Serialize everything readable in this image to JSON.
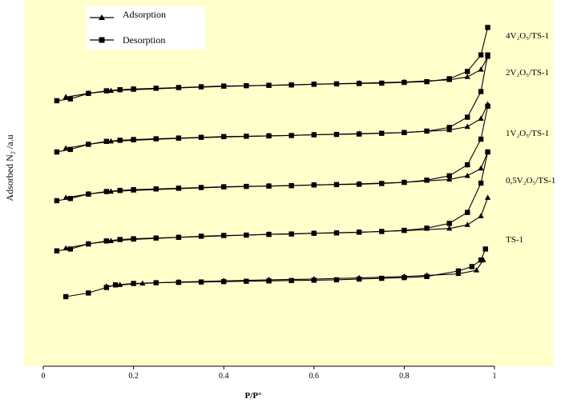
{
  "colors": {
    "plot_background": "#FFFFCC",
    "legend_background": "#FFFFFF",
    "line": "#000000"
  },
  "chart_data": {
    "type": "line",
    "title": "",
    "xlabel": "P/P°",
    "ylabel": "Adsorbed N₂ /a.u",
    "xlim": [
      0,
      1
    ],
    "ylim": [
      0,
      1
    ],
    "x_ticks": [
      "0",
      "0.2",
      "0.4",
      "0.6",
      "0.8",
      "1"
    ],
    "grid": false,
    "legend_position": "top-left",
    "legend": [
      {
        "label": "Adsorption",
        "marker": "triangle"
      },
      {
        "label": "Desorption",
        "marker": "square"
      }
    ],
    "curve_labels": [
      "4V₂O₅/TS-1",
      "2V₂O₅/TS-1",
      "1V₂O₅/TS-1",
      "0,5V₂O₅/TS-1",
      "TS-1"
    ],
    "series": [
      {
        "name": "4V₂O₅/TS-1",
        "adsorption": {
          "x": [
            0.05,
            0.1,
            0.15,
            0.2,
            0.3,
            0.4,
            0.5,
            0.6,
            0.7,
            0.8,
            0.9,
            0.94,
            0.97,
            0.985
          ],
          "y": [
            0.735,
            0.745,
            0.752,
            0.755,
            0.76,
            0.764,
            0.767,
            0.77,
            0.773,
            0.776,
            0.782,
            0.79,
            0.81,
            0.845
          ]
        },
        "desorption": {
          "x": [
            0.03,
            0.06,
            0.1,
            0.14,
            0.17,
            0.2,
            0.25,
            0.3,
            0.35,
            0.4,
            0.45,
            0.5,
            0.55,
            0.6,
            0.65,
            0.7,
            0.75,
            0.8,
            0.85,
            0.9,
            0.94,
            0.97,
            0.985
          ],
          "y": [
            0.725,
            0.73,
            0.745,
            0.752,
            0.755,
            0.757,
            0.759,
            0.761,
            0.763,
            0.765,
            0.766,
            0.767,
            0.768,
            0.77,
            0.771,
            0.772,
            0.773,
            0.775,
            0.777,
            0.785,
            0.805,
            0.85,
            0.925
          ]
        }
      },
      {
        "name": "2V₂O₅/TS-1",
        "adsorption": {
          "x": [
            0.05,
            0.1,
            0.15,
            0.2,
            0.3,
            0.4,
            0.5,
            0.6,
            0.7,
            0.8,
            0.9,
            0.94,
            0.97,
            0.985
          ],
          "y": [
            0.595,
            0.606,
            0.614,
            0.617,
            0.622,
            0.626,
            0.629,
            0.632,
            0.635,
            0.638,
            0.645,
            0.654,
            0.676,
            0.715
          ]
        },
        "desorption": {
          "x": [
            0.03,
            0.06,
            0.1,
            0.14,
            0.17,
            0.2,
            0.25,
            0.3,
            0.35,
            0.4,
            0.45,
            0.5,
            0.55,
            0.6,
            0.65,
            0.7,
            0.75,
            0.8,
            0.85,
            0.9,
            0.94,
            0.97,
            0.985
          ],
          "y": [
            0.585,
            0.592,
            0.606,
            0.614,
            0.617,
            0.619,
            0.621,
            0.623,
            0.625,
            0.627,
            0.628,
            0.629,
            0.63,
            0.632,
            0.633,
            0.634,
            0.636,
            0.638,
            0.642,
            0.652,
            0.68,
            0.75,
            0.85
          ]
        }
      },
      {
        "name": "1V₂O₅/TS-1",
        "adsorption": {
          "x": [
            0.05,
            0.1,
            0.15,
            0.2,
            0.3,
            0.4,
            0.5,
            0.6,
            0.7,
            0.8,
            0.9,
            0.94,
            0.97,
            0.985
          ],
          "y": [
            0.46,
            0.47,
            0.477,
            0.48,
            0.485,
            0.489,
            0.492,
            0.495,
            0.498,
            0.502,
            0.51,
            0.52,
            0.54,
            0.585
          ]
        },
        "desorption": {
          "x": [
            0.03,
            0.06,
            0.1,
            0.14,
            0.17,
            0.2,
            0.25,
            0.3,
            0.35,
            0.4,
            0.45,
            0.5,
            0.55,
            0.6,
            0.65,
            0.7,
            0.75,
            0.8,
            0.85,
            0.9,
            0.94,
            0.97,
            0.985
          ],
          "y": [
            0.452,
            0.458,
            0.47,
            0.477,
            0.48,
            0.482,
            0.484,
            0.486,
            0.488,
            0.49,
            0.491,
            0.492,
            0.493,
            0.495,
            0.496,
            0.497,
            0.499,
            0.502,
            0.508,
            0.52,
            0.55,
            0.62,
            0.71
          ]
        }
      },
      {
        "name": "0,5V₂O₅/TS-1",
        "adsorption": {
          "x": [
            0.05,
            0.1,
            0.15,
            0.2,
            0.3,
            0.4,
            0.5,
            0.6,
            0.7,
            0.8,
            0.9,
            0.94,
            0.97,
            0.985
          ],
          "y": [
            0.322,
            0.334,
            0.342,
            0.346,
            0.352,
            0.356,
            0.36,
            0.363,
            0.366,
            0.37,
            0.376,
            0.386,
            0.41,
            0.46
          ]
        },
        "desorption": {
          "x": [
            0.03,
            0.06,
            0.1,
            0.14,
            0.17,
            0.2,
            0.25,
            0.3,
            0.35,
            0.4,
            0.45,
            0.5,
            0.55,
            0.6,
            0.65,
            0.7,
            0.75,
            0.8,
            0.85,
            0.9,
            0.94,
            0.97,
            0.985
          ],
          "y": [
            0.315,
            0.32,
            0.334,
            0.342,
            0.346,
            0.348,
            0.35,
            0.352,
            0.355,
            0.357,
            0.358,
            0.36,
            0.361,
            0.363,
            0.364,
            0.366,
            0.368,
            0.371,
            0.377,
            0.39,
            0.42,
            0.5,
            0.585
          ]
        }
      },
      {
        "name": "TS-1",
        "adsorption": {
          "x": [
            0.14,
            0.17,
            0.22,
            0.3,
            0.4,
            0.5,
            0.6,
            0.7,
            0.8,
            0.85,
            0.92,
            0.96,
            0.975
          ],
          "y": [
            0.218,
            0.222,
            0.226,
            0.23,
            0.233,
            0.236,
            0.238,
            0.241,
            0.245,
            0.248,
            0.252,
            0.262,
            0.29
          ]
        },
        "desorption": {
          "x": [
            0.05,
            0.1,
            0.14,
            0.16,
            0.2,
            0.25,
            0.3,
            0.35,
            0.4,
            0.45,
            0.5,
            0.55,
            0.6,
            0.65,
            0.7,
            0.75,
            0.8,
            0.85,
            0.92,
            0.95,
            0.97,
            0.98
          ],
          "y": [
            0.19,
            0.2,
            0.215,
            0.222,
            0.226,
            0.228,
            0.229,
            0.23,
            0.231,
            0.232,
            0.233,
            0.234,
            0.235,
            0.236,
            0.238,
            0.24,
            0.242,
            0.245,
            0.26,
            0.272,
            0.29,
            0.32
          ]
        }
      }
    ]
  }
}
